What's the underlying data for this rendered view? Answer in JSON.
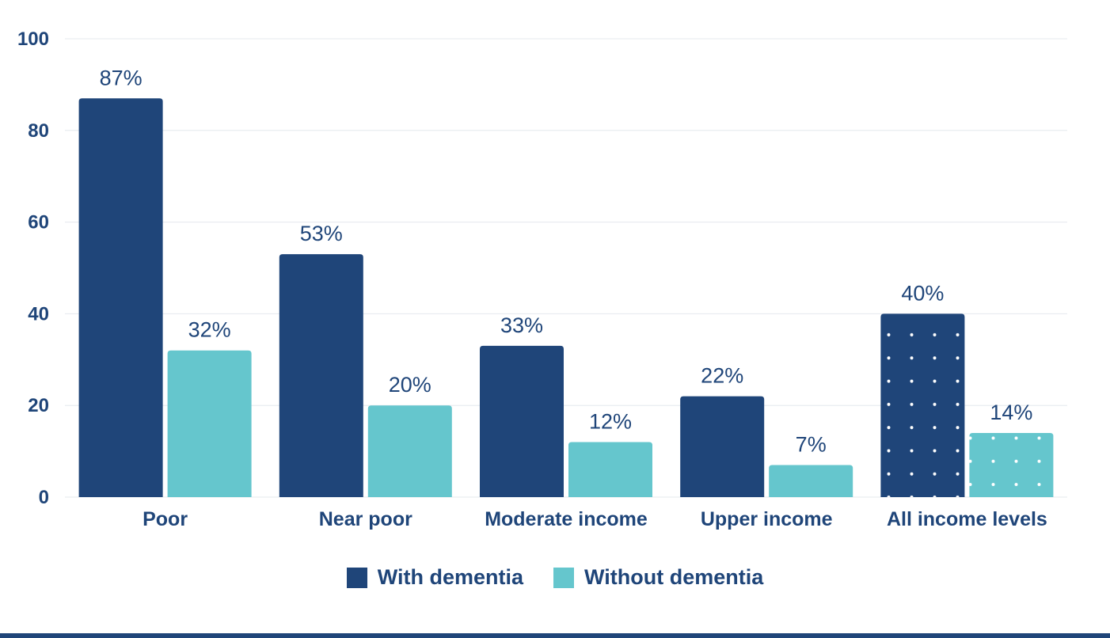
{
  "chart_data": {
    "type": "bar",
    "categories": [
      "Poor",
      "Near poor",
      "Moderate income",
      "Upper income",
      "All income levels"
    ],
    "series": [
      {
        "name": "With dementia",
        "values": [
          87,
          53,
          33,
          22,
          40
        ],
        "labels": [
          "87%",
          "53%",
          "33%",
          "22%",
          "40%"
        ],
        "color": "#1f4579"
      },
      {
        "name": "Without dementia",
        "values": [
          32,
          20,
          12,
          7,
          14
        ],
        "labels": [
          "32%",
          "20%",
          "12%",
          "7%",
          "14%"
        ],
        "color": "#65c6cd"
      }
    ],
    "highlighted_category": "All income levels",
    "highlight_pattern": "white dots",
    "yticks": [
      "0",
      "20",
      "40",
      "60",
      "80",
      "100"
    ],
    "ylim": [
      0,
      100
    ],
    "grid": true,
    "legend_position": "bottom"
  }
}
